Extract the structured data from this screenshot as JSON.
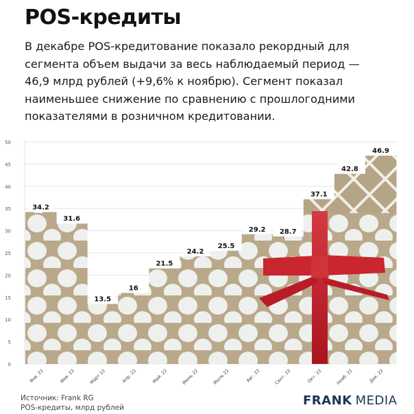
{
  "header": {
    "title": "POS-кредиты",
    "subtitle_lines": [
      "В декабре POS-кредитование показало рекордный для",
      "сегмента объем выдачи за весь наблюдаемый период —",
      "46,9 млрд рублей (+9,6% к ноябрю). Сегмент показал",
      "наименьшее снижение по сравнению с прошлогодними",
      "показателями в розничном кредитовании."
    ]
  },
  "footer": {
    "source": "Источник: Frank RG",
    "note": "POS-кредиты, млрд рублей",
    "logo_bold": "FRANK",
    "logo_light": "MEDIA"
  },
  "colors": {
    "paper": "#b9a98a",
    "dots": "#eef0ee",
    "ribbon": "#c4222c",
    "logo": "#1d3557",
    "grid": "#e6e6e6"
  },
  "chart_data": {
    "type": "bar",
    "title": "POS-кредиты",
    "xlabel": "",
    "ylabel": "POS-кредиты, млрд рублей",
    "ylim": [
      0,
      50
    ],
    "yticks": [
      0,
      5,
      10,
      15,
      20,
      25,
      30,
      35,
      40,
      45,
      50
    ],
    "grid": true,
    "categories": [
      "Янв. 22",
      "Фев. 22",
      "Март 22",
      "Апр. 22",
      "Май. 22",
      "Июнь 22",
      "Июль 22",
      "Авг. 22",
      "Сент. 22",
      "Окт. 22",
      "Нояб. 22",
      "Дек. 22"
    ],
    "values": [
      34.2,
      31.6,
      13.5,
      16,
      21.5,
      24.2,
      25.5,
      29.2,
      28.7,
      37.1,
      42.8,
      46.9
    ],
    "data_labels": [
      "34.2",
      "31.6",
      "13.5",
      "16",
      "21.5",
      "24.2",
      "25.5",
      "29.2",
      "28.7",
      "37.1",
      "42.8",
      "46.9"
    ]
  }
}
